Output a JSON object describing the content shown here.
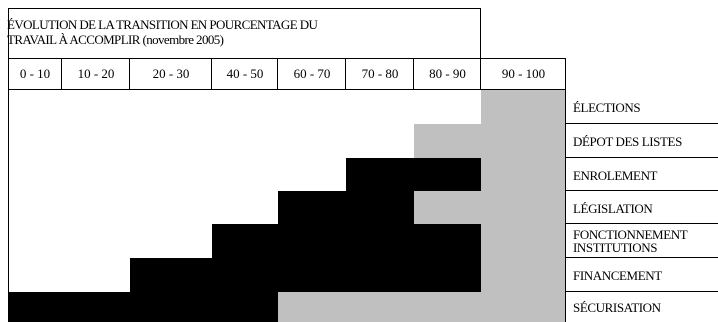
{
  "chart_data": {
    "type": "table",
    "title_lines": [
      "ÉVOLUTION DE LA TRANSITION EN POURCENTAGE DU",
      "TRAVAIL À ACCOMPLIR (novembre 2005)"
    ],
    "columns": [
      "0 - 10",
      "10 - 20",
      "20 - 30",
      "40 - 50",
      "60 - 70",
      "70 - 80",
      "80 - 90",
      "90 - 100"
    ],
    "tasks": [
      {
        "name": "ÉLECTIONS",
        "segments": [
          {
            "from": 7,
            "to": 8,
            "fill": "grey"
          }
        ]
      },
      {
        "name": "DÉPOT DES LISTES",
        "segments": [
          {
            "from": 6,
            "to": 8,
            "fill": "grey"
          }
        ]
      },
      {
        "name": "ENROLEMENT",
        "segments": [
          {
            "from": 5,
            "to": 7,
            "fill": "black"
          },
          {
            "from": 7,
            "to": 8,
            "fill": "grey"
          }
        ]
      },
      {
        "name": "LÉGISLATION",
        "segments": [
          {
            "from": 4,
            "to": 6,
            "fill": "black"
          },
          {
            "from": 6,
            "to": 8,
            "fill": "grey"
          }
        ]
      },
      {
        "name": [
          "FONCTIONNEMENT",
          "INSTITUTIONS"
        ],
        "segments": [
          {
            "from": 3,
            "to": 7,
            "fill": "black"
          },
          {
            "from": 7,
            "to": 8,
            "fill": "grey"
          }
        ]
      },
      {
        "name": "FINANCEMENT",
        "segments": [
          {
            "from": 2,
            "to": 7,
            "fill": "black"
          },
          {
            "from": 7,
            "to": 8,
            "fill": "grey"
          }
        ]
      },
      {
        "name": "SÉCURISATION",
        "segments": [
          {
            "from": 0,
            "to": 4,
            "fill": "black"
          },
          {
            "from": 4,
            "to": 8,
            "fill": "grey"
          }
        ]
      }
    ]
  },
  "colors": {
    "black": "#000000",
    "grey": "#c0c0c0",
    "rule": "#000000"
  }
}
